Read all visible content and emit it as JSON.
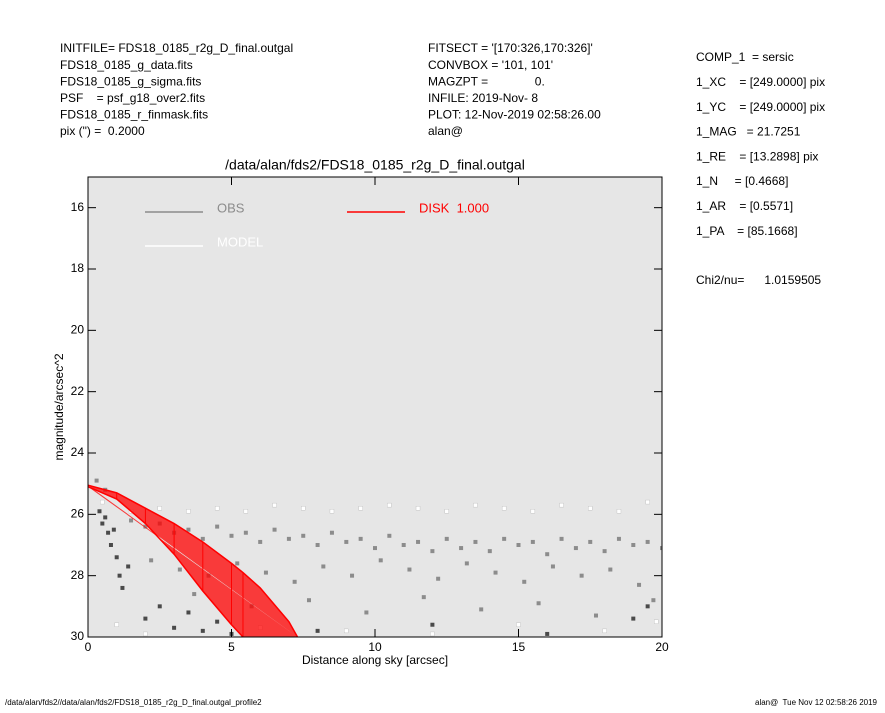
{
  "chart_data": {
    "type": "scatter",
    "title": "/data/alan/fds2/FDS18_0185_r2g_D_final.outgal",
    "x_label": "Distance along sky [arcsec]",
    "y_label": "magnitude/arcsec^2",
    "header_left": [
      "INITFILE= FDS18_0185_r2g_D_final.outgal",
      "FDS18_0185_g_data.fits",
      "FDS18_0185_g_sigma.fits",
      "PSF    = psf_g18_over2.fits",
      "FDS18_0185_r_finmask.fits",
      "pix (\") =  0.2000"
    ],
    "header_mid": [
      "FITSECT = '[170:326,170:326]'",
      "CONVBOX = '101, 101'",
      "MAGZPT =              0.",
      "INFILE: 2019-Nov- 8",
      "PLOT: 12-Nov-2019 02:58:26.00",
      "alan@"
    ],
    "header_right": [
      "COMP_1  = sersic",
      "1_XC    = [249.0000] pix",
      "1_YC    = [249.0000] pix",
      "1_MAG   = 21.7251",
      "1_RE    = [13.2898] pix",
      "1_N     = [0.4668]",
      "1_AR    = [0.5571]",
      "1_PA    = [85.1668]"
    ],
    "chi2": "Chi2/nu=      1.0159505",
    "footer_left": "/data/alan/fds2//data/alan/fds2/FDS18_0185_r2g_D_final.outgal_profile2",
    "footer_right": "alan@  Tue Nov 12 02:58:26 2019",
    "xlim": [
      0,
      20
    ],
    "ylim": [
      30,
      15
    ],
    "xticks": [
      0,
      5,
      10,
      15,
      20
    ],
    "yticks": [
      16,
      18,
      20,
      22,
      24,
      26,
      28,
      30
    ],
    "background": "#e6e6e6",
    "series": [
      {
        "name": "OBS",
        "color": "#8c8c8c",
        "x": [
          1.5,
          2,
          2.5,
          3,
          3.5,
          4,
          4.5,
          5,
          5.5,
          6,
          6.5,
          7,
          7.5,
          8,
          8.5,
          9,
          9.5,
          10,
          10.5,
          11,
          11.5,
          12,
          12.5,
          13,
          13.5,
          14,
          14.5,
          15,
          15.5,
          16,
          16.5,
          17,
          17.5,
          18,
          18.5,
          19,
          19.5,
          20,
          2.2,
          3.2,
          4.2,
          5.2,
          6.2,
          7.2,
          8.2,
          9.2,
          10.2,
          11.2,
          12.2,
          13.2,
          14.2,
          15.2,
          16.2,
          17.2,
          18.2,
          19.2,
          3.7,
          5.7,
          7.7,
          9.7,
          11.7,
          13.7,
          15.7,
          17.7,
          19.7,
          0.3,
          0.6
        ],
        "values": [
          26.2,
          26.4,
          26.3,
          26.6,
          26.5,
          26.8,
          26.4,
          26.7,
          26.6,
          26.9,
          26.5,
          26.8,
          26.7,
          27.0,
          26.6,
          26.9,
          26.8,
          27.1,
          26.7,
          27.0,
          26.9,
          27.2,
          26.8,
          27.1,
          26.9,
          27.2,
          26.8,
          27.0,
          26.9,
          27.3,
          26.8,
          27.1,
          26.9,
          27.2,
          26.8,
          27.0,
          26.9,
          27.1,
          27.5,
          27.8,
          28.0,
          27.6,
          27.9,
          28.2,
          27.7,
          28.0,
          27.5,
          27.8,
          28.1,
          27.6,
          27.9,
          28.2,
          27.7,
          28.0,
          27.8,
          28.3,
          28.6,
          29.0,
          28.8,
          29.2,
          28.7,
          29.1,
          28.9,
          29.3,
          28.8,
          24.9,
          25.2
        ]
      },
      {
        "name": "MODEL",
        "color": "#ffffff",
        "x": [
          0.5,
          1.5,
          2.5,
          3.5,
          4.5,
          5.5,
          6.5,
          7.5,
          8.5,
          9.5,
          10.5,
          11.5,
          12.5,
          13.5,
          14.5,
          15.5,
          16.5,
          17.5,
          18.5,
          19.5,
          6,
          9,
          12,
          15,
          18,
          19.8,
          1,
          2
        ],
        "values": [
          25.6,
          25.9,
          25.8,
          25.9,
          25.8,
          25.9,
          25.7,
          25.8,
          25.9,
          25.8,
          25.7,
          25.8,
          25.9,
          25.7,
          25.8,
          25.9,
          25.7,
          25.8,
          25.9,
          25.6,
          29.7,
          29.8,
          29.9,
          29.6,
          29.8,
          29.5,
          29.6,
          29.9
        ]
      },
      {
        "name": "DISK  1.000",
        "color": "#ff0000",
        "x": [
          0,
          1,
          2,
          3,
          4,
          5,
          5.4,
          6,
          7,
          7.3
        ],
        "values": [
          25.05,
          25.3,
          25.8,
          26.3,
          26.9,
          27.6,
          27.9,
          28.4,
          29.5,
          30
        ],
        "values2": [
          25.1,
          25.5,
          26.3,
          27.3,
          28.5,
          29.6,
          30,
          null,
          null,
          null
        ]
      },
      {
        "color": "#4a4a4a",
        "x": [
          0.4,
          0.5,
          0.6,
          0.7,
          0.8,
          0.9,
          1.0,
          1.1,
          1.2,
          1.4,
          2.0,
          2.5,
          3.0,
          3.5,
          4.0,
          4.5,
          5.0,
          8.0,
          12.0,
          16.0,
          19.0,
          19.5
        ],
        "values": [
          25.9,
          26.3,
          26.1,
          26.6,
          27.0,
          26.5,
          27.4,
          28.0,
          28.4,
          27.7,
          29.4,
          29.0,
          29.7,
          29.2,
          29.8,
          29.5,
          29.9,
          29.8,
          29.6,
          29.9,
          29.4,
          29.0
        ]
      }
    ]
  }
}
